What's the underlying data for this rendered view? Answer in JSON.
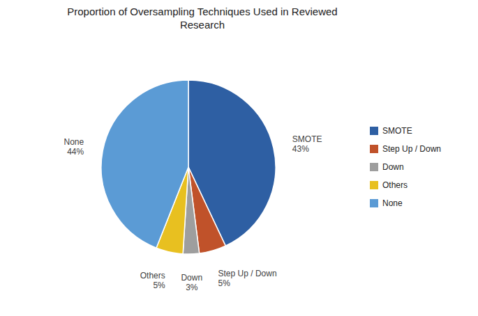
{
  "chart_data": {
    "type": "pie",
    "title": "Proportion of Oversampling Techniques Used in Reviewed\nResearch",
    "categories": [
      "SMOTE",
      "Step Up / Down",
      "Down",
      "Others",
      "None"
    ],
    "values": [
      43,
      5,
      3,
      5,
      44
    ],
    "value_labels": [
      "43%",
      "5%",
      "3%",
      "5%",
      "44%"
    ],
    "colors": [
      "#2E5FA3",
      "#C0522A",
      "#9E9E9E",
      "#E8C020",
      "#5B9BD5"
    ],
    "data_labels": true,
    "legend": "right"
  }
}
